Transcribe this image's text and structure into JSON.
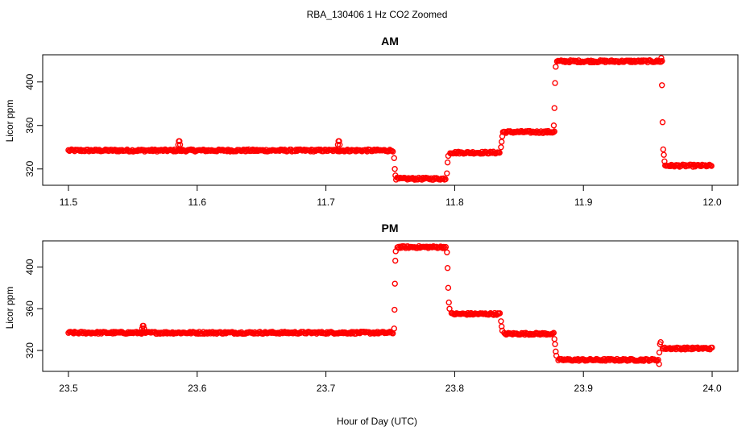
{
  "figure": {
    "title": "RBA_130406  1 Hz CO2 Zoomed",
    "xlabel": "Hour of Day (UTC)"
  },
  "colors": {
    "points": "#ff0000",
    "axes": "#000000",
    "background": "#ffffff"
  },
  "chart_data": [
    {
      "type": "scatter",
      "title": "AM",
      "xlabel": "",
      "ylabel": "Licor ppm",
      "xlim": [
        11.48,
        12.02
      ],
      "ylim": [
        305,
        425
      ],
      "xticks": [
        11.5,
        11.6,
        11.7,
        11.8,
        11.9,
        12.0
      ],
      "xtick_labels": [
        "11.5",
        "11.6",
        "11.7",
        "11.8",
        "11.9",
        "12.0"
      ],
      "yticks": [
        320,
        360,
        400
      ],
      "ytick_labels": [
        "320",
        "360",
        "400"
      ],
      "grid": false,
      "segments": [
        {
          "x": [
            11.5,
            11.7525
          ],
          "y": 337
        },
        {
          "x": [
            11.7545,
            11.7935
          ],
          "y": 311
        },
        {
          "x": [
            11.7965,
            11.8355
          ],
          "y": 335
        },
        {
          "x": [
            11.8375,
            11.8775
          ],
          "y": 354
        },
        {
          "x": [
            11.8795,
            11.9615
          ],
          "y": 419
        },
        {
          "x": [
            11.9635,
            12.0
          ],
          "y": 323
        }
      ],
      "spikes": [
        {
          "x": 11.586,
          "y": 346
        },
        {
          "x": 11.71,
          "y": 346
        }
      ],
      "transitions": [
        {
          "x": 11.753,
          "y": 330
        },
        {
          "x": 11.7535,
          "y": 320
        },
        {
          "x": 11.754,
          "y": 314
        },
        {
          "x": 11.794,
          "y": 316
        },
        {
          "x": 11.7945,
          "y": 326
        },
        {
          "x": 11.795,
          "y": 332
        },
        {
          "x": 11.836,
          "y": 340
        },
        {
          "x": 11.8365,
          "y": 345
        },
        {
          "x": 11.837,
          "y": 350
        },
        {
          "x": 11.877,
          "y": 360
        },
        {
          "x": 11.8775,
          "y": 376
        },
        {
          "x": 11.878,
          "y": 399
        },
        {
          "x": 11.8785,
          "y": 414
        },
        {
          "x": 11.9605,
          "y": 422
        },
        {
          "x": 11.961,
          "y": 397
        },
        {
          "x": 11.9615,
          "y": 363
        },
        {
          "x": 11.962,
          "y": 338
        },
        {
          "x": 11.9625,
          "y": 333
        },
        {
          "x": 11.963,
          "y": 327
        }
      ]
    },
    {
      "type": "scatter",
      "title": "PM",
      "xlabel": "",
      "ylabel": "Licor ppm",
      "xlim": [
        23.48,
        24.02
      ],
      "ylim": [
        300,
        425
      ],
      "xticks": [
        23.5,
        23.6,
        23.7,
        23.8,
        23.9,
        24.0
      ],
      "xtick_labels": [
        "23.5",
        "23.6",
        "23.7",
        "23.8",
        "23.9",
        "24.0"
      ],
      "yticks": [
        320,
        360,
        400
      ],
      "ytick_labels": [
        "320",
        "360",
        "400"
      ],
      "grid": false,
      "segments": [
        {
          "x": [
            23.5,
            23.7525
          ],
          "y": 337
        },
        {
          "x": [
            23.7555,
            23.7935
          ],
          "y": 419
        },
        {
          "x": [
            23.7975,
            23.8355
          ],
          "y": 355
        },
        {
          "x": [
            23.8385,
            23.8775
          ],
          "y": 336
        },
        {
          "x": [
            23.8805,
            23.9585
          ],
          "y": 311
        },
        {
          "x": [
            23.9615,
            24.0
          ],
          "y": 322
        }
      ],
      "spikes": [
        {
          "x": 23.558,
          "y": 344
        }
      ],
      "transitions": [
        {
          "x": 23.753,
          "y": 341
        },
        {
          "x": 23.7533,
          "y": 359
        },
        {
          "x": 23.7536,
          "y": 384
        },
        {
          "x": 23.7539,
          "y": 406
        },
        {
          "x": 23.7542,
          "y": 415
        },
        {
          "x": 23.794,
          "y": 414
        },
        {
          "x": 23.7945,
          "y": 399
        },
        {
          "x": 23.795,
          "y": 380
        },
        {
          "x": 23.7955,
          "y": 366
        },
        {
          "x": 23.796,
          "y": 360
        },
        {
          "x": 23.836,
          "y": 348
        },
        {
          "x": 23.8365,
          "y": 343
        },
        {
          "x": 23.837,
          "y": 339
        },
        {
          "x": 23.8775,
          "y": 331
        },
        {
          "x": 23.878,
          "y": 326
        },
        {
          "x": 23.8785,
          "y": 319
        },
        {
          "x": 23.879,
          "y": 315
        },
        {
          "x": 23.9588,
          "y": 307
        },
        {
          "x": 23.959,
          "y": 318
        },
        {
          "x": 23.9595,
          "y": 326
        },
        {
          "x": 23.96,
          "y": 328
        }
      ]
    }
  ]
}
